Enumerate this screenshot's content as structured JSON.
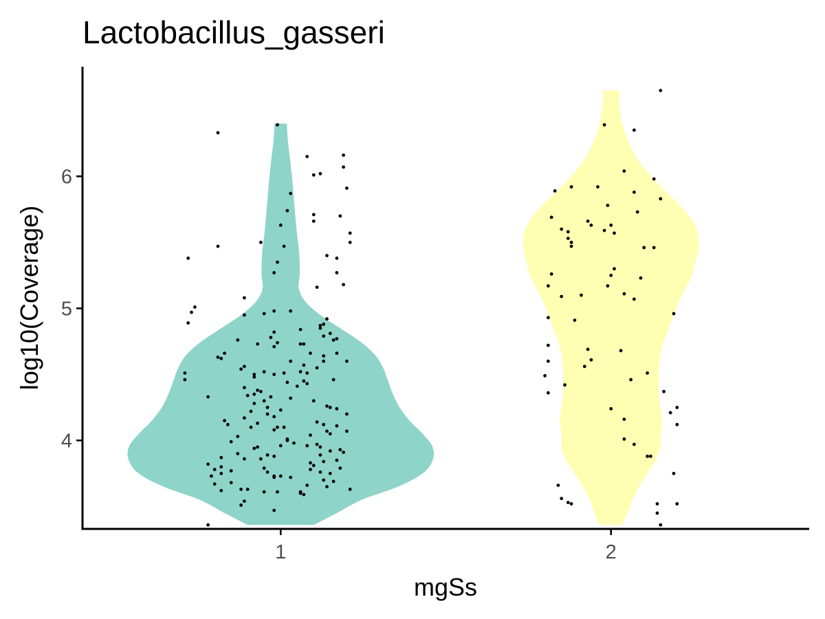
{
  "chart_data": {
    "type": "violin",
    "title": "Lactobacillus_gasseri",
    "xlabel": "mgSs",
    "ylabel": "log10(Coverage)",
    "categories": [
      "1",
      "2"
    ],
    "yticks": [
      4,
      5,
      6
    ],
    "ylim": [
      3.33,
      6.83
    ],
    "colors": [
      "#8fd4c9",
      "#ffffb3"
    ],
    "grid": false,
    "legend": "none",
    "series": [
      {
        "category": "1",
        "color": "#8fd4c9",
        "y_range": [
          3.36,
          6.4
        ],
        "points": [
          [
            0.81,
            6.33
          ],
          [
            0.99,
            6.39
          ],
          [
            1.08,
            6.15
          ],
          [
            1.1,
            6.01
          ],
          [
            1.12,
            6.02
          ],
          [
            1.19,
            6.16
          ],
          [
            1.19,
            6.07
          ],
          [
            1.2,
            5.91
          ],
          [
            1.03,
            5.87
          ],
          [
            1.02,
            5.74
          ],
          [
            1.1,
            5.71
          ],
          [
            1.18,
            5.7
          ],
          [
            1.1,
            5.66
          ],
          [
            1.0,
            5.63
          ],
          [
            1.21,
            5.57
          ],
          [
            0.94,
            5.5
          ],
          [
            1.21,
            5.5
          ],
          [
            0.81,
            5.47
          ],
          [
            1.01,
            5.47
          ],
          [
            1.14,
            5.4
          ],
          [
            1.17,
            5.38
          ],
          [
            0.72,
            5.38
          ],
          [
            0.99,
            5.35
          ],
          [
            1.17,
            5.27
          ],
          [
            0.98,
            5.27
          ],
          [
            1.19,
            5.18
          ],
          [
            1.11,
            5.16
          ],
          [
            0.89,
            5.08
          ],
          [
            0.74,
            5.01
          ],
          [
            0.73,
            4.97
          ],
          [
            1.03,
            4.98
          ],
          [
            0.98,
            4.98
          ],
          [
            0.95,
            4.96
          ],
          [
            0.89,
            4.95
          ],
          [
            1.14,
            4.92
          ],
          [
            0.72,
            4.89
          ],
          [
            1.13,
            4.88
          ],
          [
            1.12,
            4.87
          ],
          [
            1.12,
            4.85
          ],
          [
            1.06,
            4.84
          ],
          [
            0.98,
            4.82
          ],
          [
            1.15,
            4.81
          ],
          [
            1.13,
            4.79
          ],
          [
            1.17,
            4.77
          ],
          [
            0.97,
            4.78
          ],
          [
            0.87,
            4.76
          ],
          [
            1.16,
            4.76
          ],
          [
            0.99,
            4.74
          ],
          [
            0.93,
            4.73
          ],
          [
            1.07,
            4.73
          ],
          [
            1.06,
            4.73
          ],
          [
            0.98,
            4.71
          ],
          [
            1.17,
            4.66
          ],
          [
            0.83,
            4.66
          ],
          [
            1.09,
            4.66
          ],
          [
            1.13,
            4.64
          ],
          [
            0.81,
            4.63
          ],
          [
            0.82,
            4.62
          ],
          [
            1.2,
            4.6
          ],
          [
            1.13,
            4.6
          ],
          [
            1.03,
            4.6
          ],
          [
            1.07,
            4.57
          ],
          [
            0.89,
            4.56
          ],
          [
            1.11,
            4.55
          ],
          [
            0.88,
            4.54
          ],
          [
            1.06,
            4.52
          ],
          [
            0.95,
            4.52
          ],
          [
            1.01,
            4.51
          ],
          [
            1.08,
            4.51
          ],
          [
            0.98,
            4.5
          ],
          [
            0.71,
            4.51
          ],
          [
            0.92,
            4.5
          ],
          [
            0.92,
            4.48
          ],
          [
            0.71,
            4.46
          ],
          [
            1.16,
            4.46
          ],
          [
            1.07,
            4.45
          ],
          [
            1.02,
            4.44
          ],
          [
            1.08,
            4.43
          ],
          [
            1.05,
            4.41
          ],
          [
            0.89,
            4.4
          ],
          [
            0.93,
            4.38
          ],
          [
            0.94,
            4.37
          ],
          [
            0.92,
            4.35
          ],
          [
            0.78,
            4.33
          ],
          [
            0.9,
            4.34
          ],
          [
            0.97,
            4.33
          ],
          [
            1.03,
            4.32
          ],
          [
            0.95,
            4.3
          ],
          [
            1.1,
            4.3
          ],
          [
            0.92,
            4.28
          ],
          [
            1.14,
            4.26
          ],
          [
            1.15,
            4.25
          ],
          [
            0.96,
            4.25
          ],
          [
            1.17,
            4.24
          ],
          [
            1.0,
            4.23
          ],
          [
            0.91,
            4.22
          ],
          [
            0.96,
            4.2
          ],
          [
            1.2,
            4.2
          ],
          [
            0.98,
            4.18
          ],
          [
            0.89,
            4.17
          ],
          [
            0.83,
            4.15
          ],
          [
            1.11,
            4.14
          ],
          [
            0.93,
            4.13
          ],
          [
            0.84,
            4.12
          ],
          [
            1.13,
            4.12
          ],
          [
            1.17,
            4.11
          ],
          [
            0.91,
            4.1
          ],
          [
            0.99,
            4.1
          ],
          [
            1.01,
            4.1
          ],
          [
            0.98,
            4.08
          ],
          [
            1.2,
            4.07
          ],
          [
            1.14,
            4.07
          ],
          [
            1.15,
            4.05
          ],
          [
            1.09,
            4.04
          ],
          [
            0.87,
            4.03
          ],
          [
            1.02,
            4.01
          ],
          [
            1.02,
            4.0
          ],
          [
            0.85,
            3.99
          ],
          [
            1.04,
            3.98
          ],
          [
            1.11,
            3.97
          ],
          [
            1.08,
            3.96
          ],
          [
            1.0,
            3.96
          ],
          [
            1.12,
            3.95
          ],
          [
            0.93,
            3.95
          ],
          [
            0.92,
            3.94
          ],
          [
            1.18,
            3.93
          ],
          [
            1.15,
            3.92
          ],
          [
            1.19,
            3.91
          ],
          [
            0.87,
            3.9
          ],
          [
            0.96,
            3.89
          ],
          [
            1.12,
            3.89
          ],
          [
            0.98,
            3.88
          ],
          [
            0.82,
            3.87
          ],
          [
            0.89,
            3.86
          ],
          [
            0.94,
            3.86
          ],
          [
            1.17,
            3.85
          ],
          [
            1.13,
            3.84
          ],
          [
            1.09,
            3.83
          ],
          [
            0.78,
            3.82
          ],
          [
            1.1,
            3.81
          ],
          [
            0.82,
            3.8
          ],
          [
            0.95,
            3.79
          ],
          [
            1.18,
            3.79
          ],
          [
            1.09,
            3.78
          ],
          [
            0.8,
            3.78
          ],
          [
            0.85,
            3.77
          ],
          [
            0.96,
            3.76
          ],
          [
            1.12,
            3.76
          ],
          [
            1.15,
            3.75
          ],
          [
            0.82,
            3.75
          ],
          [
            0.79,
            3.73
          ],
          [
            0.98,
            3.73
          ],
          [
            1.0,
            3.73
          ],
          [
            1.03,
            3.72
          ],
          [
            0.98,
            3.72
          ],
          [
            1.13,
            3.7
          ],
          [
            1.16,
            3.69
          ],
          [
            0.85,
            3.68
          ],
          [
            0.8,
            3.67
          ],
          [
            1.08,
            3.66
          ],
          [
            1.14,
            3.65
          ],
          [
            0.9,
            3.63
          ],
          [
            0.88,
            3.63
          ],
          [
            1.21,
            3.63
          ],
          [
            0.82,
            3.62
          ],
          [
            1.06,
            3.61
          ],
          [
            0.95,
            3.61
          ],
          [
            1.06,
            3.6
          ],
          [
            0.99,
            3.61
          ],
          [
            1.07,
            3.59
          ],
          [
            0.89,
            3.54
          ],
          [
            0.88,
            3.51
          ],
          [
            0.98,
            3.47
          ],
          [
            0.78,
            3.36
          ]
        ],
        "violin_profile": [
          [
            3.36,
            0.2
          ],
          [
            3.45,
            0.34
          ],
          [
            3.55,
            0.49
          ],
          [
            3.65,
            0.71
          ],
          [
            3.75,
            0.86
          ],
          [
            3.85,
            0.92
          ],
          [
            3.95,
            0.92
          ],
          [
            4.05,
            0.86
          ],
          [
            4.15,
            0.78
          ],
          [
            4.25,
            0.72
          ],
          [
            4.35,
            0.68
          ],
          [
            4.45,
            0.65
          ],
          [
            4.55,
            0.62
          ],
          [
            4.65,
            0.57
          ],
          [
            4.75,
            0.48
          ],
          [
            4.85,
            0.36
          ],
          [
            4.95,
            0.24
          ],
          [
            5.05,
            0.15
          ],
          [
            5.15,
            0.11
          ],
          [
            5.25,
            0.115
          ],
          [
            5.35,
            0.115
          ],
          [
            5.45,
            0.11
          ],
          [
            5.55,
            0.1
          ],
          [
            5.65,
            0.092
          ],
          [
            5.75,
            0.085
          ],
          [
            5.85,
            0.078
          ],
          [
            5.95,
            0.072
          ],
          [
            6.05,
            0.064
          ],
          [
            6.15,
            0.055
          ],
          [
            6.25,
            0.045
          ],
          [
            6.33,
            0.04
          ],
          [
            6.4,
            0.038
          ]
        ]
      },
      {
        "category": "2",
        "color": "#ffffb3",
        "y_range": [
          3.36,
          6.65
        ],
        "points": [
          [
            2.15,
            6.65
          ],
          [
            1.98,
            6.39
          ],
          [
            2.07,
            6.35
          ],
          [
            2.04,
            6.04
          ],
          [
            2.13,
            5.98
          ],
          [
            1.83,
            5.89
          ],
          [
            1.88,
            5.92
          ],
          [
            1.96,
            5.92
          ],
          [
            2.07,
            5.88
          ],
          [
            2.15,
            5.83
          ],
          [
            1.99,
            5.78
          ],
          [
            2.08,
            5.73
          ],
          [
            1.82,
            5.69
          ],
          [
            1.93,
            5.66
          ],
          [
            1.94,
            5.63
          ],
          [
            2.0,
            5.63
          ],
          [
            1.85,
            5.6
          ],
          [
            1.87,
            5.58
          ],
          [
            1.98,
            5.59
          ],
          [
            2.01,
            5.57
          ],
          [
            1.87,
            5.53
          ],
          [
            1.88,
            5.5
          ],
          [
            1.88,
            5.47
          ],
          [
            2.1,
            5.46
          ],
          [
            2.13,
            5.46
          ],
          [
            2.01,
            5.3
          ],
          [
            2.0,
            5.25
          ],
          [
            2.09,
            5.23
          ],
          [
            1.82,
            5.26
          ],
          [
            1.81,
            5.17
          ],
          [
            1.99,
            5.17
          ],
          [
            1.91,
            5.1
          ],
          [
            2.04,
            5.11
          ],
          [
            2.07,
            5.07
          ],
          [
            1.85,
            5.09
          ],
          [
            2.19,
            4.96
          ],
          [
            1.81,
            4.93
          ],
          [
            1.89,
            4.91
          ],
          [
            1.81,
            4.72
          ],
          [
            1.93,
            4.69
          ],
          [
            2.03,
            4.68
          ],
          [
            1.81,
            4.6
          ],
          [
            1.94,
            4.61
          ],
          [
            1.92,
            4.56
          ],
          [
            2.11,
            4.51
          ],
          [
            1.8,
            4.49
          ],
          [
            2.06,
            4.46
          ],
          [
            1.86,
            4.42
          ],
          [
            1.81,
            4.36
          ],
          [
            2.16,
            4.37
          ],
          [
            2.18,
            4.21
          ],
          [
            2.0,
            4.24
          ],
          [
            2.2,
            4.25
          ],
          [
            2.04,
            4.16
          ],
          [
            2.2,
            4.12
          ],
          [
            2.04,
            4.01
          ],
          [
            2.07,
            3.97
          ],
          [
            2.11,
            3.88
          ],
          [
            2.12,
            3.88
          ],
          [
            2.19,
            3.75
          ],
          [
            1.84,
            3.66
          ],
          [
            1.85,
            3.56
          ],
          [
            1.87,
            3.53
          ],
          [
            1.88,
            3.52
          ],
          [
            2.2,
            3.52
          ],
          [
            2.14,
            3.52
          ],
          [
            2.14,
            3.45
          ],
          [
            2.15,
            3.36
          ]
        ],
        "violin_profile": [
          [
            3.36,
            0.07
          ],
          [
            3.45,
            0.1
          ],
          [
            3.55,
            0.13
          ],
          [
            3.65,
            0.17
          ],
          [
            3.75,
            0.22
          ],
          [
            3.85,
            0.27
          ],
          [
            3.95,
            0.3
          ],
          [
            4.05,
            0.3
          ],
          [
            4.15,
            0.31
          ],
          [
            4.25,
            0.3
          ],
          [
            4.35,
            0.29
          ],
          [
            4.45,
            0.29
          ],
          [
            4.55,
            0.29
          ],
          [
            4.65,
            0.3
          ],
          [
            4.75,
            0.32
          ],
          [
            4.85,
            0.35
          ],
          [
            4.95,
            0.38
          ],
          [
            5.05,
            0.41
          ],
          [
            5.15,
            0.45
          ],
          [
            5.25,
            0.49
          ],
          [
            5.35,
            0.51
          ],
          [
            5.45,
            0.53
          ],
          [
            5.55,
            0.53
          ],
          [
            5.65,
            0.5
          ],
          [
            5.75,
            0.44
          ],
          [
            5.85,
            0.36
          ],
          [
            5.95,
            0.28
          ],
          [
            6.05,
            0.21
          ],
          [
            6.15,
            0.15
          ],
          [
            6.25,
            0.11
          ],
          [
            6.35,
            0.08
          ],
          [
            6.45,
            0.06
          ],
          [
            6.55,
            0.05
          ],
          [
            6.65,
            0.05
          ]
        ]
      }
    ]
  }
}
